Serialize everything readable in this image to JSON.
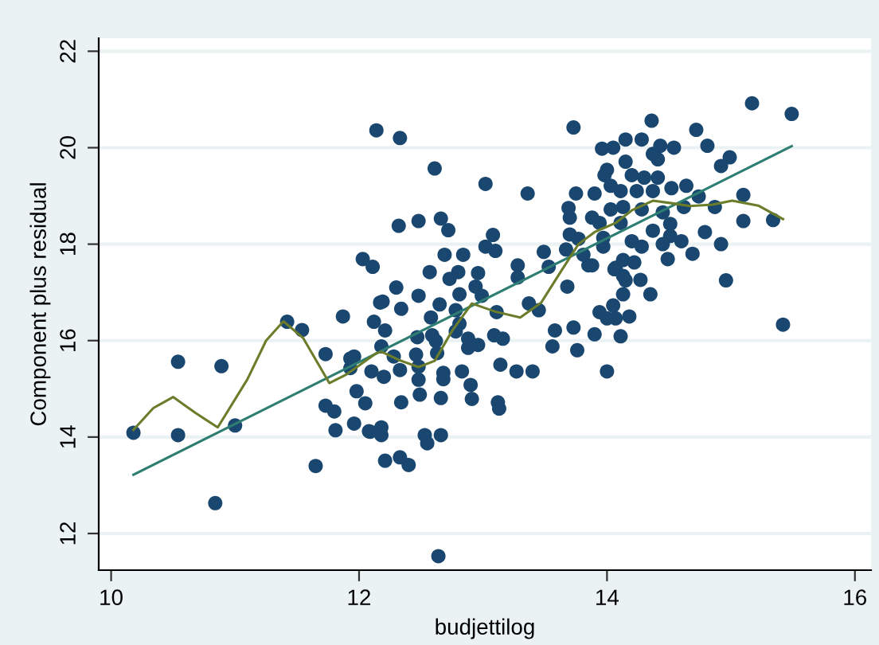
{
  "chart_data": {
    "type": "scatter",
    "xlabel": "budjettilog",
    "ylabel": "Component plus residual",
    "xlim": [
      9.9,
      16.13
    ],
    "ylim": [
      11.24,
      22.27
    ],
    "xticks": [
      10,
      12,
      14,
      16
    ],
    "yticks": [
      12,
      14,
      16,
      18,
      20,
      22
    ],
    "grid": "y",
    "legend": false,
    "series": [
      {
        "marker": "circle",
        "color": "#1a476f",
        "x": [
          10.18,
          10.54,
          10.54,
          10.89,
          10.84,
          11.0,
          11.42,
          11.54,
          11.65,
          11.73,
          11.73,
          11.8,
          11.81,
          11.87,
          11.93,
          11.93,
          11.98,
          12.03,
          12.11,
          12.14,
          12.12,
          11.96,
          12.05,
          12.09,
          12.1,
          12.17,
          12.33,
          12.61,
          12.32,
          12.48,
          12.66,
          12.72,
          12.69,
          13.02,
          13.08,
          13.02,
          13.1,
          12.84,
          12.57,
          12.8,
          12.73,
          12.96,
          12.3,
          12.48,
          12.81,
          12.94,
          12.99,
          12.19,
          12.34,
          12.65,
          12.21,
          12.58,
          12.78,
          12.81,
          12.78,
          13.11,
          13.37,
          13.45,
          12.47,
          12.59,
          12.62,
          12.88,
          12.88,
          12.96,
          13.09,
          13.16,
          12.18,
          11.96,
          12.28,
          12.46,
          12.63,
          12.2,
          12.33,
          12.48,
          12.48,
          12.68,
          12.68,
          12.83,
          13.14,
          13.27,
          13.4,
          12.34,
          12.49,
          12.66,
          12.9,
          12.91,
          13.12,
          13.13,
          12.08,
          12.18,
          12.18,
          12.53,
          12.55,
          12.66,
          12.21,
          12.33,
          12.4,
          12.64,
          13.73,
          13.96,
          14.05,
          13.36,
          13.75,
          13.9,
          14.0,
          13.98,
          14.03,
          13.69,
          13.7,
          13.88,
          13.7,
          13.77,
          13.49,
          13.53,
          13.67,
          13.81,
          13.85,
          13.68,
          13.28,
          13.28,
          13.58,
          13.56,
          13.73,
          13.76,
          13.9,
          13.94,
          14.0,
          14.05,
          14.0,
          14.06,
          15.17,
          15.49,
          14.36,
          14.15,
          14.28,
          14.43,
          14.54,
          14.72,
          14.81,
          14.37,
          14.41,
          14.99,
          14.92,
          14.15,
          14.2,
          14.3,
          14.41,
          14.52,
          14.64,
          14.11,
          14.24,
          14.37,
          14.74,
          14.62,
          15.1,
          14.87,
          14.03,
          14.13,
          14.28,
          14.45,
          15.1,
          15.34,
          13.94,
          14.11,
          14.51,
          14.37,
          14.51,
          14.79,
          13.97,
          13.97,
          14.2,
          14.28,
          14.45,
          14.6,
          14.69,
          14.49,
          14.92,
          13.88,
          14.07,
          14.13,
          14.22,
          14.13,
          14.15,
          14.27,
          14.96,
          14.13,
          14.35,
          14.07,
          14.18,
          14.11,
          15.42
        ],
        "values": [
          14.09,
          15.56,
          14.04,
          15.47,
          12.63,
          14.24,
          16.39,
          16.22,
          13.4,
          15.72,
          14.65,
          14.53,
          14.14,
          16.5,
          15.63,
          15.43,
          14.95,
          17.69,
          17.53,
          20.36,
          16.39,
          14.28,
          14.7,
          14.11,
          15.36,
          16.79,
          20.2,
          19.57,
          18.38,
          18.48,
          18.53,
          18.29,
          17.78,
          19.25,
          18.19,
          17.95,
          17.86,
          17.78,
          17.42,
          17.42,
          17.28,
          17.4,
          17.1,
          16.93,
          16.96,
          17.12,
          16.93,
          16.81,
          16.66,
          16.75,
          16.21,
          16.48,
          16.63,
          16.35,
          16.19,
          16.59,
          16.77,
          16.63,
          16.07,
          16.11,
          15.99,
          16.04,
          15.85,
          15.91,
          16.11,
          16.04,
          15.88,
          15.67,
          15.67,
          15.71,
          15.74,
          15.25,
          15.39,
          15.46,
          15.19,
          15.33,
          15.2,
          15.36,
          15.5,
          15.36,
          15.36,
          14.72,
          14.88,
          14.81,
          15.08,
          14.79,
          14.72,
          14.59,
          14.12,
          14.04,
          14.2,
          14.04,
          13.87,
          14.04,
          13.51,
          13.58,
          13.42,
          11.53,
          20.42,
          19.98,
          20.0,
          19.05,
          19.05,
          19.05,
          19.54,
          19.43,
          19.21,
          18.75,
          18.55,
          18.55,
          18.2,
          18.11,
          17.84,
          17.53,
          17.89,
          17.78,
          17.56,
          17.12,
          17.56,
          17.31,
          16.21,
          15.88,
          16.27,
          15.8,
          16.13,
          16.59,
          16.46,
          16.73,
          15.36,
          17.48,
          20.92,
          20.7,
          20.56,
          20.17,
          20.17,
          20.04,
          20.0,
          20.37,
          20.04,
          19.87,
          19.76,
          19.8,
          19.62,
          19.71,
          19.43,
          19.38,
          19.38,
          19.16,
          19.21,
          19.1,
          19.1,
          19.1,
          18.99,
          18.77,
          19.02,
          18.77,
          18.72,
          18.77,
          18.72,
          18.66,
          18.48,
          18.5,
          18.44,
          18.44,
          18.42,
          18.28,
          18.17,
          18.25,
          18.13,
          17.95,
          18.06,
          17.95,
          18.0,
          18.06,
          17.8,
          17.69,
          18.0,
          17.56,
          17.51,
          17.67,
          17.62,
          17.34,
          17.25,
          17.26,
          17.25,
          16.96,
          16.96,
          16.46,
          16.5,
          16.09,
          16.33
        ]
      },
      {
        "type": "line",
        "color": "#2e7d72",
        "x": [
          10.18,
          15.49
        ],
        "values": [
          13.22,
          20.03
        ]
      },
      {
        "type": "line",
        "color": "#6b7d2a",
        "x": [
          10.18,
          10.34,
          10.5,
          10.68,
          10.86,
          11.1,
          11.25,
          11.39,
          11.55,
          11.76,
          11.9,
          12.14,
          12.18,
          12.32,
          12.48,
          12.61,
          12.75,
          12.91,
          13.1,
          13.3,
          13.47,
          13.62,
          13.77,
          13.9,
          14.07,
          14.2,
          14.37,
          14.52,
          14.67,
          14.85,
          15.01,
          15.22,
          15.42
        ],
        "values": [
          14.15,
          14.6,
          14.83,
          14.5,
          14.2,
          15.2,
          16.0,
          16.4,
          16.05,
          15.12,
          15.3,
          15.74,
          15.77,
          15.6,
          15.45,
          15.58,
          16.2,
          16.77,
          16.6,
          16.48,
          16.79,
          17.4,
          18.0,
          18.25,
          18.44,
          18.7,
          18.9,
          18.85,
          18.79,
          18.82,
          18.9,
          18.8,
          18.52
        ]
      }
    ]
  }
}
